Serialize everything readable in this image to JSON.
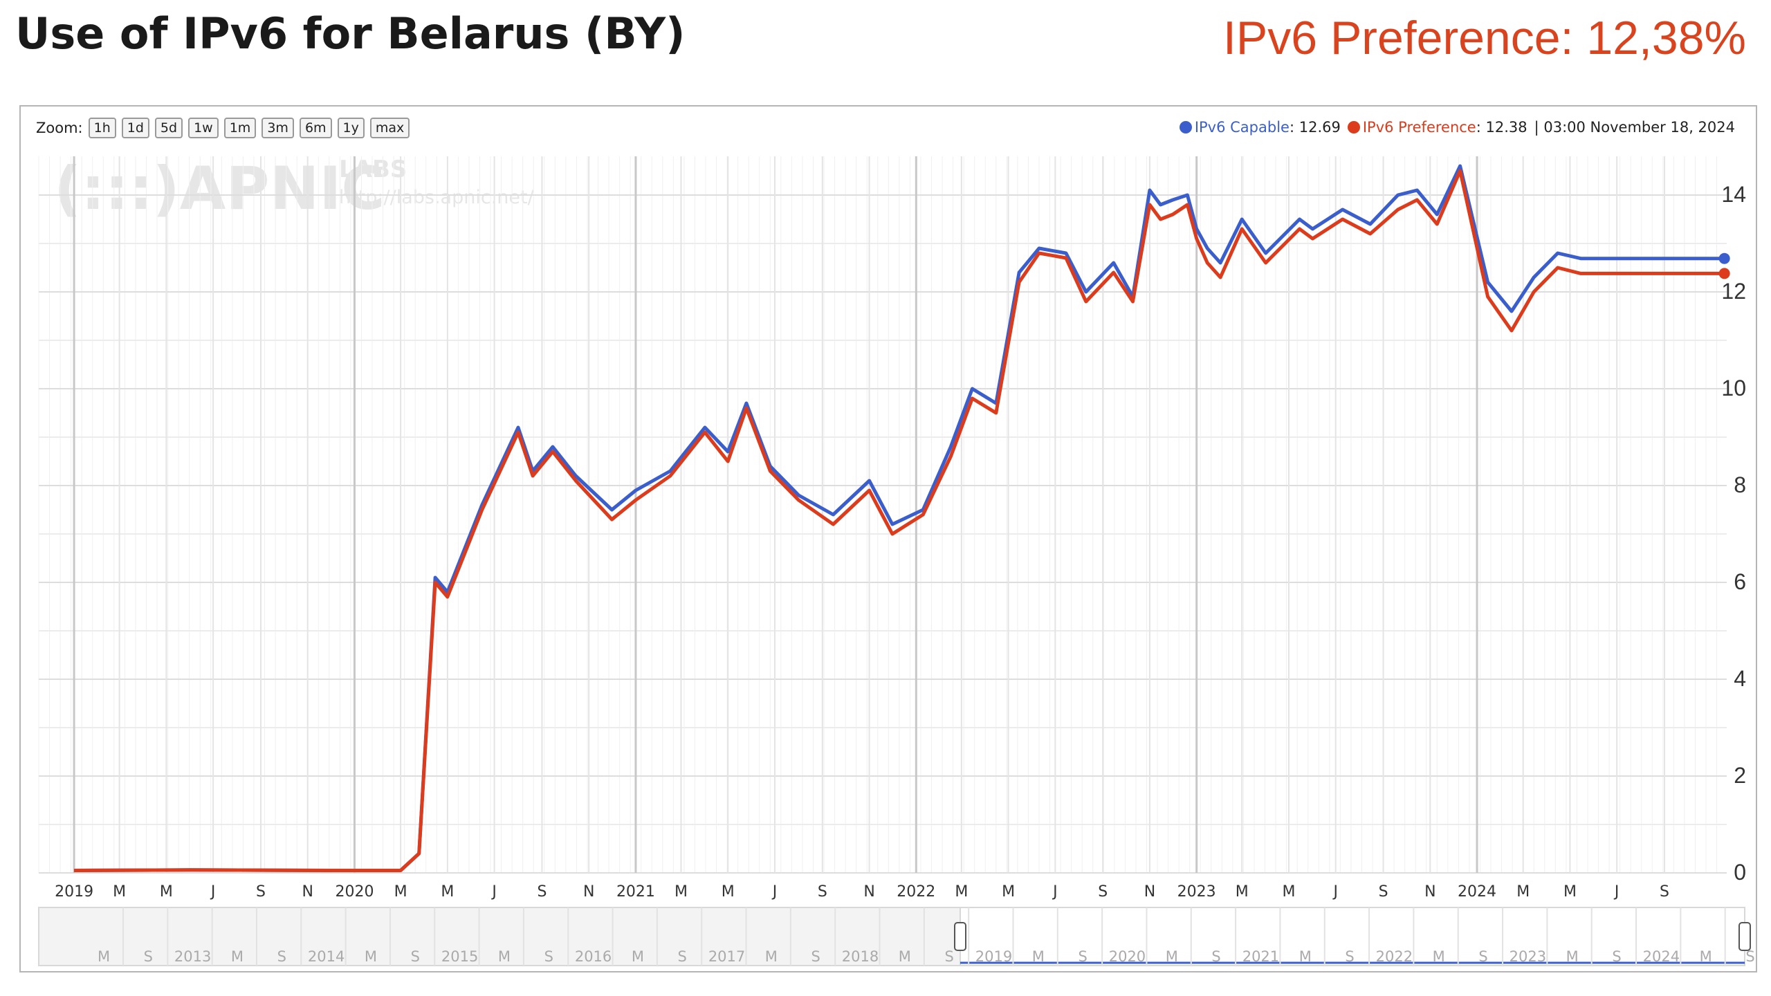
{
  "header": {
    "title": "Use of IPv6 for Belarus (BY)",
    "preference_label": "IPv6 Preference: 12,38%"
  },
  "zoom": {
    "label": "Zoom:",
    "buttons": [
      "1h",
      "1d",
      "5d",
      "1w",
      "1m",
      "3m",
      "6m",
      "1y",
      "max"
    ]
  },
  "legend": {
    "capable_label": "IPv6 Capable",
    "capable_value": ": 12.69",
    "preference_label": "IPv6 Preference",
    "preference_value": ": 12.38",
    "timestamp": "| 03:00 November 18, 2024"
  },
  "watermark": {
    "logo": "(:::)APNIC",
    "labs": "LABS",
    "url": "http://labs.apnic.net/"
  },
  "colors": {
    "capable": "#3a5fcd",
    "preference": "#dc3b1c",
    "title_accent": "#d9431d"
  },
  "chart_data": {
    "type": "line",
    "xlabel": "",
    "ylabel": "",
    "ylim": [
      0,
      14.8
    ],
    "yticks": [
      0,
      2,
      4,
      6,
      8,
      10,
      12,
      14
    ],
    "grid": true,
    "legend_position": "top-right",
    "x_ticks": [
      "2019",
      "M",
      "M",
      "J",
      "S",
      "N",
      "2020",
      "M",
      "M",
      "J",
      "S",
      "N",
      "2021",
      "M",
      "M",
      "J",
      "S",
      "N",
      "2022",
      "M",
      "M",
      "J",
      "S",
      "N",
      "2023",
      "M",
      "M",
      "J",
      "S",
      "N",
      "2024",
      "M",
      "M",
      "J",
      "S"
    ],
    "series": [
      {
        "name": "IPv6 Capable",
        "color": "#3a5fcd",
        "x": [
          "2019-01-01",
          "2019-06-01",
          "2019-12-01",
          "2020-03-01",
          "2020-03-25",
          "2020-04-15",
          "2020-05-01",
          "2020-06-15",
          "2020-08-01",
          "2020-08-20",
          "2020-09-15",
          "2020-10-15",
          "2020-12-01",
          "2021-01-01",
          "2021-02-15",
          "2021-04-01",
          "2021-05-01",
          "2021-05-25",
          "2021-06-25",
          "2021-08-01",
          "2021-09-15",
          "2021-11-01",
          "2021-12-01",
          "2022-01-10",
          "2022-02-15",
          "2022-03-15",
          "2022-04-15",
          "2022-05-15",
          "2022-06-10",
          "2022-07-15",
          "2022-08-10",
          "2022-09-15",
          "2022-10-10",
          "2022-11-01",
          "2022-11-15",
          "2022-12-01",
          "2022-12-20",
          "2023-01-01",
          "2023-01-15",
          "2023-02-01",
          "2023-03-01",
          "2023-04-01",
          "2023-05-15",
          "2023-06-01",
          "2023-07-10",
          "2023-08-15",
          "2023-09-20",
          "2023-10-15",
          "2023-11-10",
          "2023-12-10",
          "2024-01-15",
          "2024-02-15",
          "2024-03-15",
          "2024-04-15",
          "2024-05-15",
          "2024-06-01",
          "2024-06-25",
          "2024-07-15",
          "2024-08-01",
          "2024-08-25",
          "2024-09-15",
          "2024-10-15",
          "2024-11-18"
        ],
        "y": [
          0.05,
          0.06,
          0.05,
          0.05,
          0.4,
          6.1,
          5.8,
          7.6,
          9.2,
          8.3,
          8.8,
          8.2,
          7.5,
          7.9,
          8.3,
          9.2,
          8.7,
          9.7,
          8.4,
          7.8,
          7.4,
          8.1,
          7.2,
          7.5,
          8.8,
          10.0,
          9.7,
          12.4,
          12.9,
          12.8,
          12.0,
          12.6,
          11.9,
          14.1,
          13.8,
          13.9,
          14.0,
          13.3,
          12.9,
          12.6,
          13.5,
          12.8,
          13.5,
          13.3,
          13.7,
          13.4,
          14.0,
          14.1,
          13.6,
          14.6,
          12.2,
          11.6,
          12.3,
          12.8,
          12.69,
          12.69,
          12.69,
          12.69,
          12.69,
          12.69,
          12.69,
          12.69,
          12.69
        ]
      },
      {
        "name": "IPv6 Preference",
        "color": "#dc3b1c",
        "x": [
          "2019-01-01",
          "2019-06-01",
          "2019-12-01",
          "2020-03-01",
          "2020-03-25",
          "2020-04-15",
          "2020-05-01",
          "2020-06-15",
          "2020-08-01",
          "2020-08-20",
          "2020-09-15",
          "2020-10-15",
          "2020-12-01",
          "2021-01-01",
          "2021-02-15",
          "2021-04-01",
          "2021-05-01",
          "2021-05-25",
          "2021-06-25",
          "2021-08-01",
          "2021-09-15",
          "2021-11-01",
          "2021-12-01",
          "2022-01-10",
          "2022-02-15",
          "2022-03-15",
          "2022-04-15",
          "2022-05-15",
          "2022-06-10",
          "2022-07-15",
          "2022-08-10",
          "2022-09-15",
          "2022-10-10",
          "2022-11-01",
          "2022-11-15",
          "2022-12-01",
          "2022-12-20",
          "2023-01-01",
          "2023-01-15",
          "2023-02-01",
          "2023-03-01",
          "2023-04-01",
          "2023-05-15",
          "2023-06-01",
          "2023-07-10",
          "2023-08-15",
          "2023-09-20",
          "2023-10-15",
          "2023-11-10",
          "2023-12-10",
          "2024-01-15",
          "2024-02-15",
          "2024-03-15",
          "2024-04-15",
          "2024-05-15",
          "2024-06-01",
          "2024-06-25",
          "2024-07-15",
          "2024-08-01",
          "2024-08-25",
          "2024-09-15",
          "2024-10-15",
          "2024-11-18"
        ],
        "y": [
          0.05,
          0.06,
          0.05,
          0.05,
          0.4,
          6.0,
          5.7,
          7.5,
          9.1,
          8.2,
          8.7,
          8.1,
          7.3,
          7.7,
          8.2,
          9.1,
          8.5,
          9.6,
          8.3,
          7.7,
          7.2,
          7.9,
          7.0,
          7.4,
          8.6,
          9.8,
          9.5,
          12.2,
          12.8,
          12.7,
          11.8,
          12.4,
          11.8,
          13.8,
          13.5,
          13.6,
          13.8,
          13.1,
          12.6,
          12.3,
          13.3,
          12.6,
          13.3,
          13.1,
          13.5,
          13.2,
          13.7,
          13.9,
          13.4,
          14.5,
          11.9,
          11.2,
          12.0,
          12.5,
          12.38,
          12.38,
          12.38,
          12.38,
          12.38,
          12.38,
          12.38,
          12.38,
          12.38
        ]
      }
    ],
    "navigator_ticks": [
      "M",
      "S",
      "2013",
      "M",
      "S",
      "2014",
      "M",
      "S",
      "2015",
      "M",
      "S",
      "2016",
      "M",
      "S",
      "2017",
      "M",
      "S",
      "2018",
      "M",
      "S",
      "2019",
      "M",
      "S",
      "2020",
      "M",
      "S",
      "2021",
      "M",
      "S",
      "2022",
      "M",
      "S",
      "2023",
      "M",
      "S",
      "2024",
      "M",
      "S"
    ]
  }
}
